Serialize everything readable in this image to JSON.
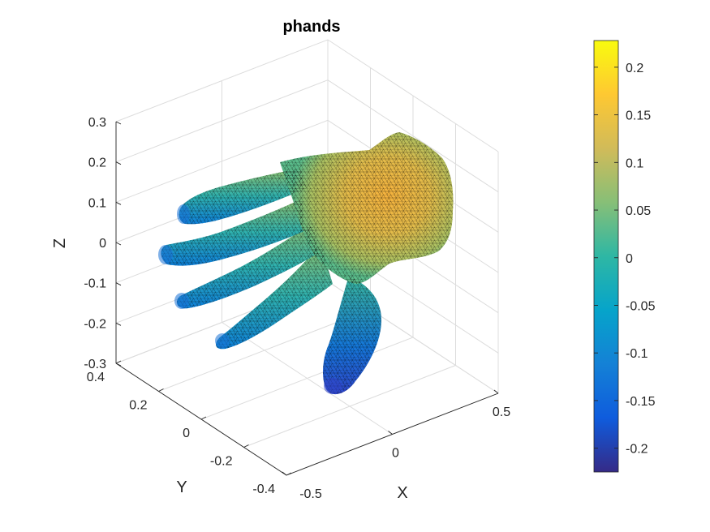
{
  "chart_data": {
    "type": "surface",
    "title": "phands",
    "xlabel": "X",
    "ylabel": "Y",
    "zlabel": "Z",
    "xlim": [
      -0.5,
      0.5
    ],
    "ylim": [
      -0.4,
      0.4
    ],
    "zlim": [
      -0.3,
      0.3
    ],
    "x_ticks": [
      "-0.5",
      "0",
      "0.5"
    ],
    "y_ticks": [
      "-0.4",
      "-0.2",
      "0",
      "0.2",
      "0.4"
    ],
    "z_ticks": [
      "-0.3",
      "-0.2",
      "-0.1",
      "0",
      "0.1",
      "0.2",
      "0.3"
    ],
    "grid": true,
    "colormap": "parula",
    "mesh_edge_color": "#000000",
    "colorbar": {
      "location": "right",
      "range": [
        -0.225,
        0.228
      ],
      "ticks": [
        "0.2",
        "0.15",
        "0.1",
        "0.05",
        "0",
        "-0.05",
        "-0.1",
        "-0.15",
        "-0.2"
      ],
      "tick_values": [
        0.2,
        0.15,
        0.1,
        0.05,
        0,
        -0.05,
        -0.1,
        -0.15,
        -0.2
      ]
    },
    "z_min": -0.225,
    "z_max": 0.228
  }
}
